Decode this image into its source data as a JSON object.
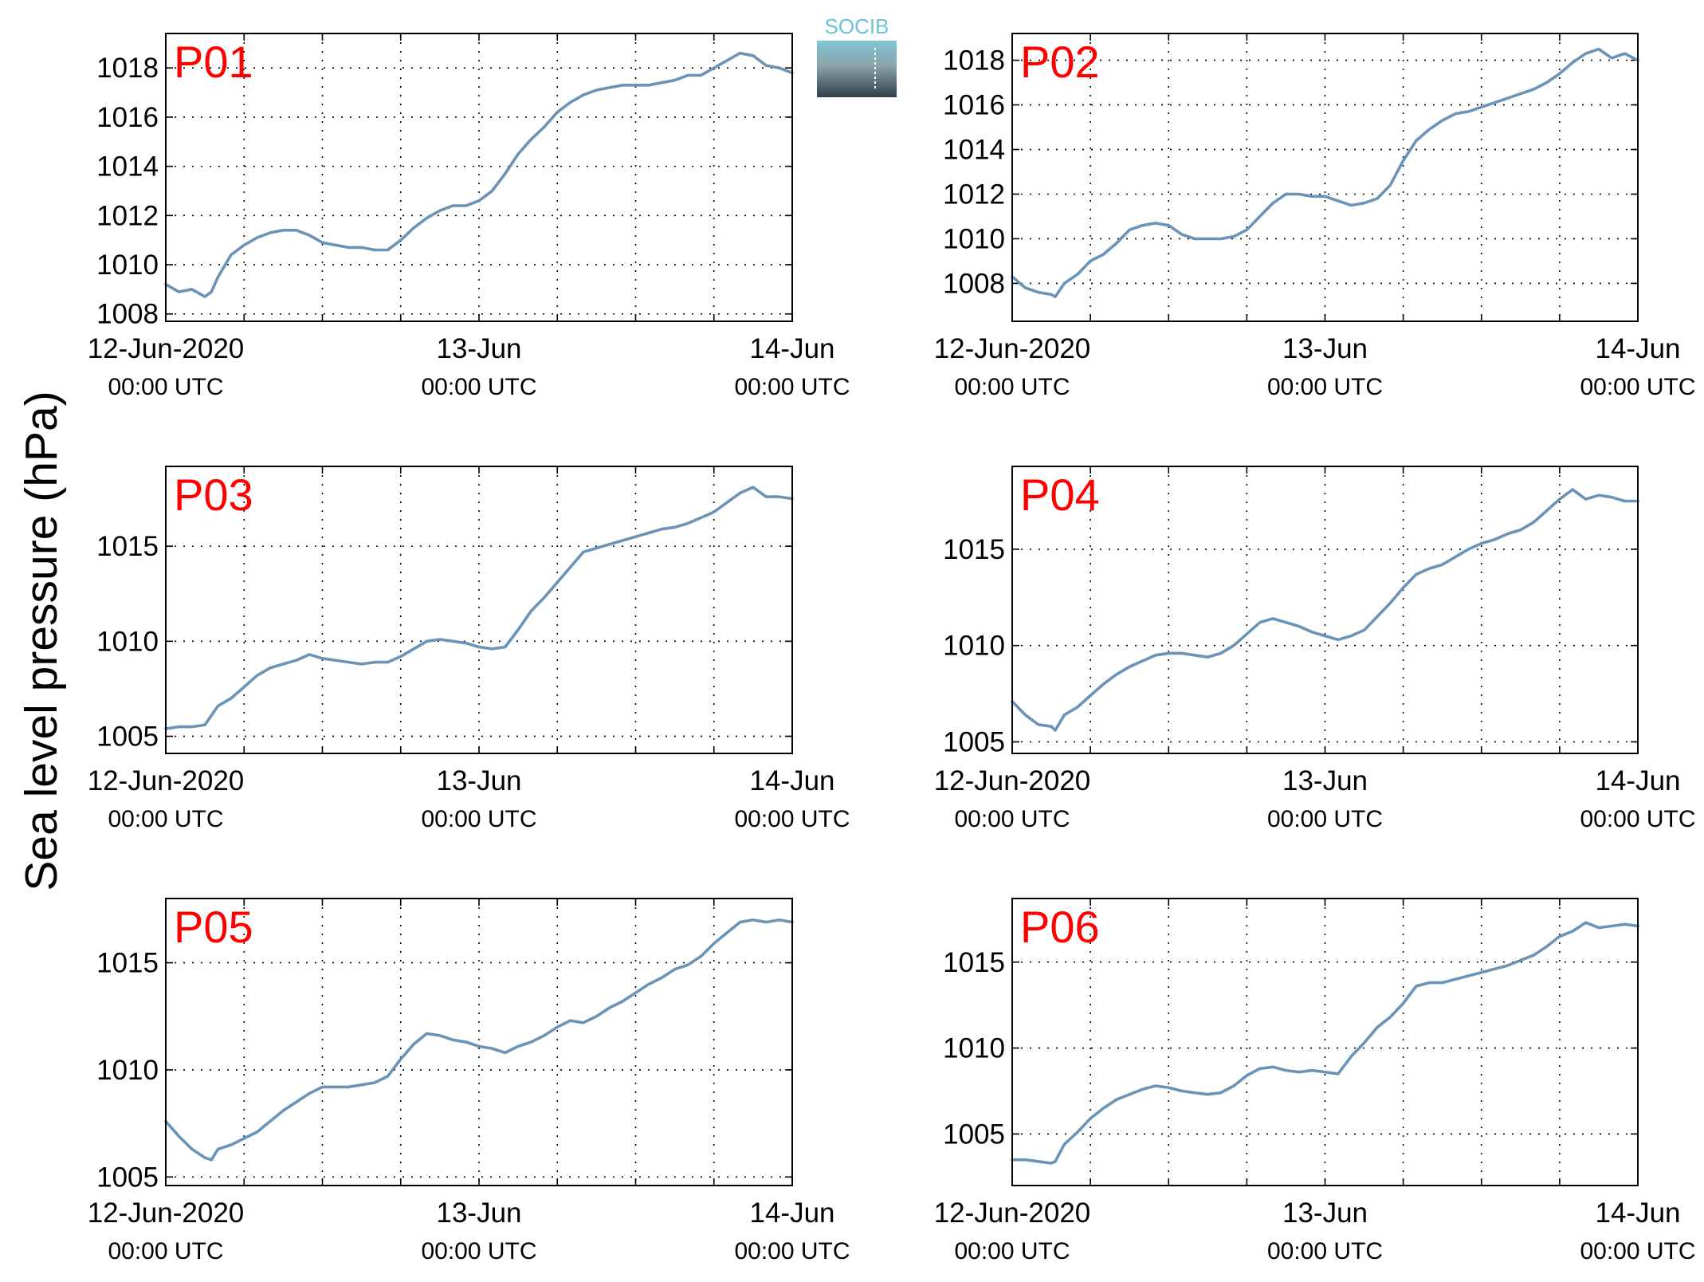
{
  "figure": {
    "ylabel": "Sea level pressure (hPa)",
    "logo_text": "SOCIB",
    "line_color": "#6a93b8",
    "panel_label_color": "#ff0000"
  },
  "x_ticks": [
    {
      "line1": "12-Jun-2020",
      "line2": "00:00 UTC",
      "hours": 0
    },
    {
      "line1": "13-Jun",
      "line2": "00:00 UTC",
      "hours": 24
    },
    {
      "line1": "14-Jun",
      "line2": "00:00 UTC",
      "hours": 48
    }
  ],
  "chart_data": [
    {
      "type": "line",
      "label": "P01",
      "x_unit": "hours since 12-Jun-2020 00:00 UTC",
      "xlim": [
        0,
        48
      ],
      "ylim": [
        1007.7,
        1019.4
      ],
      "yticks": [
        1008,
        1010,
        1012,
        1014,
        1016,
        1018
      ],
      "grid": true,
      "x": [
        0,
        1,
        2,
        3,
        3.5,
        4,
        5,
        6,
        7,
        8,
        9,
        10,
        11,
        12,
        13,
        14,
        15,
        16,
        17,
        18,
        19,
        20,
        21,
        22,
        23,
        24,
        25,
        26,
        27,
        28,
        29,
        30,
        31,
        32,
        33,
        34,
        35,
        36,
        37,
        38,
        39,
        40,
        41,
        42,
        43,
        44,
        45,
        46,
        47,
        48
      ],
      "y": [
        1009.2,
        1008.9,
        1009.0,
        1008.7,
        1008.9,
        1009.5,
        1010.4,
        1010.8,
        1011.1,
        1011.3,
        1011.4,
        1011.4,
        1011.2,
        1010.9,
        1010.8,
        1010.7,
        1010.7,
        1010.6,
        1010.6,
        1011.0,
        1011.5,
        1011.9,
        1012.2,
        1012.4,
        1012.4,
        1012.6,
        1013.0,
        1013.7,
        1014.5,
        1015.1,
        1015.6,
        1016.2,
        1016.6,
        1016.9,
        1017.1,
        1017.2,
        1017.3,
        1017.3,
        1017.3,
        1017.4,
        1017.5,
        1017.7,
        1017.7,
        1018.0,
        1018.3,
        1018.6,
        1018.5,
        1018.1,
        1018.0,
        1017.8
      ]
    },
    {
      "type": "line",
      "label": "P02",
      "x_unit": "hours since 12-Jun-2020 00:00 UTC",
      "xlim": [
        0,
        48
      ],
      "ylim": [
        1006.3,
        1019.2
      ],
      "yticks": [
        1008,
        1010,
        1012,
        1014,
        1016,
        1018
      ],
      "grid": true,
      "x": [
        0,
        1,
        2,
        3,
        3.3,
        4,
        5,
        6,
        7,
        8,
        9,
        10,
        11,
        12,
        13,
        14,
        15,
        16,
        17,
        18,
        19,
        20,
        21,
        22,
        23,
        24,
        25,
        26,
        27,
        28,
        29,
        30,
        31,
        32,
        33,
        34,
        35,
        36,
        37,
        38,
        39,
        40,
        41,
        42,
        43,
        44,
        45,
        46,
        47,
        48
      ],
      "y": [
        1008.3,
        1007.8,
        1007.6,
        1007.5,
        1007.4,
        1008.0,
        1008.4,
        1009.0,
        1009.3,
        1009.8,
        1010.4,
        1010.6,
        1010.7,
        1010.6,
        1010.2,
        1010.0,
        1010.0,
        1010.0,
        1010.1,
        1010.4,
        1011.0,
        1011.6,
        1012.0,
        1012.0,
        1011.9,
        1011.9,
        1011.7,
        1011.5,
        1011.6,
        1011.8,
        1012.4,
        1013.5,
        1014.4,
        1014.9,
        1015.3,
        1015.6,
        1015.7,
        1015.9,
        1016.1,
        1016.3,
        1016.5,
        1016.7,
        1017.0,
        1017.4,
        1017.9,
        1018.3,
        1018.5,
        1018.1,
        1018.3,
        1018.0
      ]
    },
    {
      "type": "line",
      "label": "P03",
      "x_unit": "hours since 12-Jun-2020 00:00 UTC",
      "xlim": [
        0,
        48
      ],
      "ylim": [
        1004.1,
        1019.2
      ],
      "yticks": [
        1005,
        1010,
        1015
      ],
      "grid": true,
      "x": [
        0,
        1,
        2,
        3,
        4,
        5,
        6,
        7,
        8,
        9,
        10,
        11,
        12,
        13,
        14,
        15,
        16,
        17,
        18,
        19,
        20,
        21,
        22,
        23,
        24,
        25,
        26,
        27,
        28,
        29,
        30,
        31,
        32,
        33,
        34,
        35,
        36,
        37,
        38,
        39,
        40,
        41,
        42,
        43,
        44,
        45,
        46,
        47,
        48
      ],
      "y": [
        1005.4,
        1005.5,
        1005.5,
        1005.6,
        1006.6,
        1007.0,
        1007.6,
        1008.2,
        1008.6,
        1008.8,
        1009.0,
        1009.3,
        1009.1,
        1009.0,
        1008.9,
        1008.8,
        1008.9,
        1008.9,
        1009.2,
        1009.6,
        1010.0,
        1010.1,
        1010.0,
        1009.9,
        1009.7,
        1009.6,
        1009.7,
        1010.6,
        1011.6,
        1012.3,
        1013.1,
        1013.9,
        1014.7,
        1014.9,
        1015.1,
        1015.3,
        1015.5,
        1015.7,
        1015.9,
        1016.0,
        1016.2,
        1016.5,
        1016.8,
        1017.3,
        1017.8,
        1018.1,
        1017.6,
        1017.6,
        1017.5
      ]
    },
    {
      "type": "line",
      "label": "P04",
      "x_unit": "hours since 12-Jun-2020 00:00 UTC",
      "xlim": [
        0,
        48
      ],
      "ylim": [
        1004.4,
        1019.3
      ],
      "yticks": [
        1005,
        1010,
        1015
      ],
      "grid": true,
      "x": [
        0,
        1,
        2,
        3,
        3.3,
        4,
        5,
        6,
        7,
        8,
        9,
        10,
        11,
        12,
        13,
        14,
        15,
        16,
        17,
        18,
        19,
        20,
        21,
        22,
        23,
        24,
        25,
        26,
        27,
        28,
        29,
        30,
        31,
        32,
        33,
        34,
        35,
        36,
        37,
        38,
        39,
        40,
        41,
        42,
        43,
        44,
        45,
        46,
        47,
        48
      ],
      "y": [
        1007.1,
        1006.4,
        1005.9,
        1005.8,
        1005.6,
        1006.4,
        1006.8,
        1007.4,
        1008.0,
        1008.5,
        1008.9,
        1009.2,
        1009.5,
        1009.6,
        1009.6,
        1009.5,
        1009.4,
        1009.6,
        1010.0,
        1010.6,
        1011.2,
        1011.4,
        1011.2,
        1011.0,
        1010.7,
        1010.5,
        1010.3,
        1010.5,
        1010.8,
        1011.5,
        1012.2,
        1013.0,
        1013.7,
        1014.0,
        1014.2,
        1014.6,
        1015.0,
        1015.3,
        1015.5,
        1015.8,
        1016.0,
        1016.4,
        1017.0,
        1017.6,
        1018.1,
        1017.6,
        1017.8,
        1017.7,
        1017.5,
        1017.5
      ]
    },
    {
      "type": "line",
      "label": "P05",
      "x_unit": "hours since 12-Jun-2020 00:00 UTC",
      "xlim": [
        0,
        48
      ],
      "ylim": [
        1004.6,
        1018.0
      ],
      "yticks": [
        1005,
        1010,
        1015
      ],
      "grid": true,
      "x": [
        0,
        1,
        2,
        3,
        3.5,
        4,
        5,
        6,
        7,
        8,
        9,
        10,
        11,
        12,
        13,
        14,
        15,
        16,
        17,
        18,
        19,
        20,
        21,
        22,
        23,
        24,
        25,
        26,
        27,
        28,
        29,
        30,
        31,
        32,
        33,
        34,
        35,
        36,
        37,
        38,
        39,
        40,
        41,
        42,
        43,
        44,
        45,
        46,
        47,
        48
      ],
      "y": [
        1007.6,
        1006.9,
        1006.3,
        1005.9,
        1005.8,
        1006.3,
        1006.5,
        1006.8,
        1007.1,
        1007.6,
        1008.1,
        1008.5,
        1008.9,
        1009.2,
        1009.2,
        1009.2,
        1009.3,
        1009.4,
        1009.7,
        1010.5,
        1011.2,
        1011.7,
        1011.6,
        1011.4,
        1011.3,
        1011.1,
        1011.0,
        1010.8,
        1011.1,
        1011.3,
        1011.6,
        1012.0,
        1012.3,
        1012.2,
        1012.5,
        1012.9,
        1013.2,
        1013.6,
        1014.0,
        1014.3,
        1014.7,
        1014.9,
        1015.3,
        1015.9,
        1016.4,
        1016.9,
        1017.0,
        1016.9,
        1017.0,
        1016.9
      ]
    },
    {
      "type": "line",
      "label": "P06",
      "x_unit": "hours since 12-Jun-2020 00:00 UTC",
      "xlim": [
        0,
        48
      ],
      "ylim": [
        1002.0,
        1018.7
      ],
      "yticks": [
        1005,
        1010,
        1015
      ],
      "grid": true,
      "x": [
        0,
        1,
        2,
        3,
        3.3,
        4,
        5,
        6,
        7,
        8,
        9,
        10,
        11,
        12,
        13,
        14,
        15,
        16,
        17,
        18,
        19,
        20,
        21,
        22,
        23,
        24,
        25,
        26,
        27,
        28,
        29,
        30,
        31,
        32,
        33,
        34,
        35,
        36,
        37,
        38,
        39,
        40,
        41,
        42,
        43,
        44,
        45,
        46,
        47,
        48
      ],
      "y": [
        1003.5,
        1003.5,
        1003.4,
        1003.3,
        1003.4,
        1004.4,
        1005.1,
        1005.9,
        1006.5,
        1007.0,
        1007.3,
        1007.6,
        1007.8,
        1007.7,
        1007.5,
        1007.4,
        1007.3,
        1007.4,
        1007.8,
        1008.4,
        1008.8,
        1008.9,
        1008.7,
        1008.6,
        1008.7,
        1008.6,
        1008.5,
        1009.5,
        1010.3,
        1011.2,
        1011.8,
        1012.6,
        1013.6,
        1013.8,
        1013.8,
        1014.0,
        1014.2,
        1014.4,
        1014.6,
        1014.8,
        1015.1,
        1015.4,
        1015.9,
        1016.5,
        1016.8,
        1017.3,
        1017.0,
        1017.1,
        1017.2,
        1017.1
      ]
    }
  ]
}
